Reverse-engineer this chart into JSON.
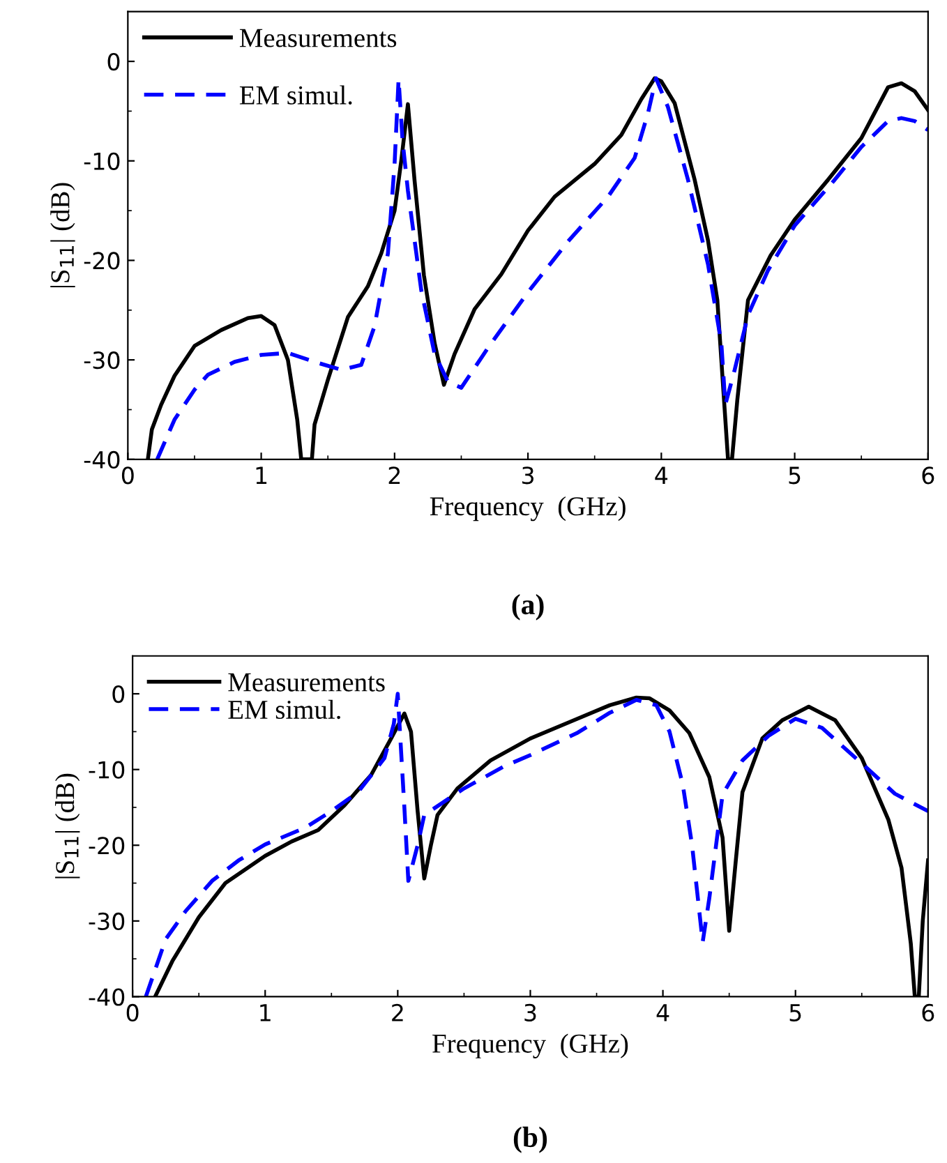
{
  "chart_data": [
    {
      "type": "line",
      "xlabel": "Frequency  (GHz)",
      "ylabel": "|S$_{11}$| (dB)",
      "annotations": [
        "(a)"
      ],
      "xlim": [
        0,
        6
      ],
      "ylim": [
        -40,
        5
      ],
      "xticks": [
        0,
        1,
        2,
        3,
        4,
        5,
        6
      ],
      "yticks": [
        -40,
        -30,
        -20,
        -10,
        0
      ],
      "grid": false,
      "legend": "top left",
      "series": [
        {
          "name": "Measurements",
          "color": "#000000",
          "line_style": "solid",
          "x": [
            0.15,
            0.18,
            0.25,
            0.35,
            0.5,
            0.7,
            0.9,
            1.0,
            1.1,
            1.2,
            1.27,
            1.3,
            1.38,
            1.4,
            1.5,
            1.65,
            1.8,
            1.9,
            2.0,
            2.05,
            2.1,
            2.15,
            2.22,
            2.3,
            2.37,
            2.45,
            2.6,
            2.8,
            3.0,
            3.2,
            3.5,
            3.7,
            3.85,
            3.95,
            4.0,
            4.1,
            4.25,
            4.35,
            4.42,
            4.47,
            4.5,
            4.53,
            4.57,
            4.65,
            4.82,
            5.0,
            5.25,
            5.5,
            5.7,
            5.8,
            5.9,
            6.0
          ],
          "values": [
            -40,
            -37,
            -34.5,
            -31.6,
            -28.6,
            -27,
            -25.8,
            -25.6,
            -26.5,
            -30,
            -36,
            -40,
            -40,
            -36.5,
            -32,
            -25.7,
            -22.6,
            -19.3,
            -15,
            -10,
            -4.3,
            -12,
            -21.5,
            -28.3,
            -32.5,
            -29.4,
            -24.9,
            -21.4,
            -17,
            -13.6,
            -10.3,
            -7.4,
            -3.8,
            -1.7,
            -2,
            -4.2,
            -11.9,
            -18,
            -24,
            -34,
            -40,
            -40,
            -34,
            -24,
            -19.5,
            -15.9,
            -11.9,
            -7.7,
            -2.6,
            -2.2,
            -3,
            -4.9
          ]
        },
        {
          "name": "EM simul.",
          "color": "#0000ff",
          "line_style": "dashed",
          "x": [
            0.22,
            0.35,
            0.5,
            0.6,
            0.8,
            1.0,
            1.2,
            1.4,
            1.6,
            1.75,
            1.85,
            1.95,
            2.0,
            2.03,
            2.06,
            2.1,
            2.2,
            2.3,
            2.4,
            2.5,
            2.7,
            3.0,
            3.3,
            3.6,
            3.8,
            3.9,
            3.96,
            4.05,
            4.2,
            4.35,
            4.45,
            4.48,
            4.55,
            4.65,
            4.8,
            5.0,
            5.3,
            5.5,
            5.7,
            5.8,
            5.9,
            6.0
          ],
          "values": [
            -40,
            -36,
            -33,
            -31.5,
            -30.2,
            -29.5,
            -29.3,
            -30.2,
            -31,
            -30.5,
            -26.6,
            -19.3,
            -10.3,
            -1.8,
            -8,
            -13,
            -23,
            -29.4,
            -32.2,
            -32.8,
            -28.8,
            -23.2,
            -18.1,
            -13.6,
            -9.7,
            -5.2,
            -1.7,
            -4.6,
            -11.9,
            -20.4,
            -28.3,
            -34.5,
            -31,
            -25.5,
            -21,
            -16.5,
            -11.9,
            -8.6,
            -6,
            -5.7,
            -6,
            -6.9
          ]
        }
      ]
    },
    {
      "type": "line",
      "xlabel": "Frequency  (GHz)",
      "ylabel": "|S$_{11}$| (dB)",
      "annotations": [
        "(b)"
      ],
      "xlim": [
        0,
        6
      ],
      "ylim": [
        -40,
        5
      ],
      "xticks": [
        0,
        1,
        2,
        3,
        4,
        5,
        6
      ],
      "yticks": [
        -40,
        -30,
        -20,
        -10,
        0
      ],
      "grid": false,
      "legend": "top left",
      "series": [
        {
          "name": "Measurements",
          "color": "#000000",
          "line_style": "solid",
          "x": [
            0.17,
            0.3,
            0.5,
            0.7,
            1.0,
            1.2,
            1.4,
            1.6,
            1.8,
            1.95,
            2.05,
            2.1,
            2.15,
            2.2,
            2.25,
            2.3,
            2.45,
            2.7,
            3.0,
            3.3,
            3.6,
            3.8,
            3.9,
            4.05,
            4.2,
            4.35,
            4.45,
            4.5,
            4.55,
            4.6,
            4.75,
            4.9,
            5.1,
            5.3,
            5.5,
            5.7,
            5.8,
            5.87,
            5.9,
            5.93,
            5.96,
            6.0
          ],
          "values": [
            -40,
            -35.3,
            -29.5,
            -25,
            -21.4,
            -19.5,
            -18,
            -14.7,
            -10.7,
            -5.9,
            -2.6,
            -5,
            -15.5,
            -24.4,
            -20,
            -16,
            -12.5,
            -8.8,
            -5.9,
            -3.7,
            -1.5,
            -0.5,
            -0.6,
            -2.2,
            -5.2,
            -11,
            -19,
            -31.3,
            -22,
            -13,
            -5.9,
            -3.5,
            -1.7,
            -3.5,
            -8.5,
            -16.6,
            -23,
            -33,
            -40,
            -40,
            -30,
            -22
          ]
        },
        {
          "name": "EM simul.",
          "color": "#0000ff",
          "line_style": "dashed",
          "x": [
            0.1,
            0.25,
            0.4,
            0.6,
            0.8,
            1.0,
            1.3,
            1.5,
            1.7,
            1.9,
            1.97,
            2.0,
            2.05,
            2.08,
            2.15,
            2.2,
            2.5,
            2.8,
            3.0,
            3.35,
            3.6,
            3.8,
            3.95,
            4.05,
            4.15,
            4.22,
            4.3,
            4.35,
            4.45,
            4.6,
            4.8,
            5.0,
            5.2,
            5.5,
            5.75,
            6.0
          ],
          "values": [
            -40,
            -32.4,
            -28.7,
            -24.7,
            -22,
            -19.9,
            -17.7,
            -15.5,
            -13,
            -8.5,
            -4,
            0,
            -15,
            -24.7,
            -20,
            -16,
            -12.5,
            -9.6,
            -8.1,
            -5.2,
            -2.5,
            -0.8,
            -1.5,
            -5,
            -12,
            -20,
            -32.8,
            -27,
            -13.3,
            -8.8,
            -5.5,
            -3.3,
            -4.5,
            -9.2,
            -13.2,
            -15.5
          ]
        }
      ]
    }
  ]
}
